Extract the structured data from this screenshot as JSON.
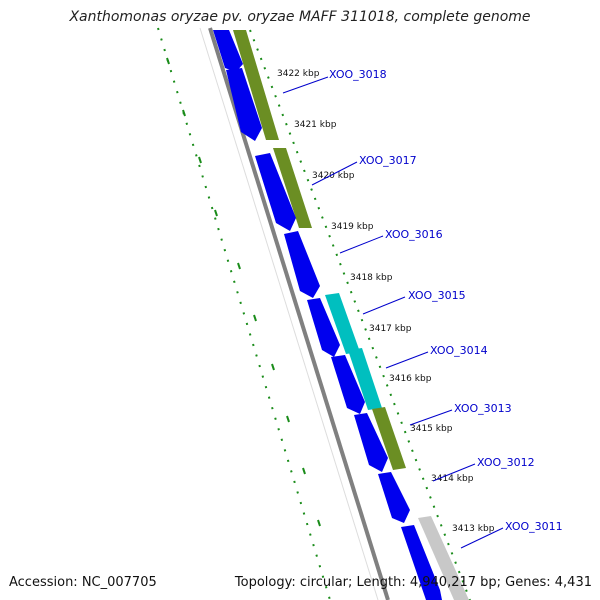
{
  "title": "Xanthomonas oryzae pv. oryzae MAFF 311018, complete genome",
  "footer": {
    "accession": "Accession: NC_007705",
    "summary": "Topology: circular; Length: 4,940,217 bp; Genes: 4,431"
  },
  "colors": {
    "forward_gene": "#0000ee",
    "cog_green": "#6b8e23",
    "cog_cyan": "#00bfbf",
    "cog_gray": "#c8c8c8",
    "backbone": "#808080",
    "scale_dots": "#1a8c1a",
    "label": "#0000cc"
  },
  "ticks": [
    {
      "label": "3422 kbp"
    },
    {
      "label": "3421 kbp"
    },
    {
      "label": "3420 kbp"
    },
    {
      "label": "3419 kbp"
    },
    {
      "label": "3418 kbp"
    },
    {
      "label": "3417 kbp"
    },
    {
      "label": "3416 kbp"
    },
    {
      "label": "3415 kbp"
    },
    {
      "label": "3414 kbp"
    },
    {
      "label": "3413 kbp"
    }
  ],
  "gene_labels": [
    {
      "label": "XOO_3018"
    },
    {
      "label": "XOO_3017"
    },
    {
      "label": "XOO_3016"
    },
    {
      "label": "XOO_3015"
    },
    {
      "label": "XOO_3014"
    },
    {
      "label": "XOO_3013"
    },
    {
      "label": "XOO_3012"
    },
    {
      "label": "XOO_3011"
    }
  ]
}
